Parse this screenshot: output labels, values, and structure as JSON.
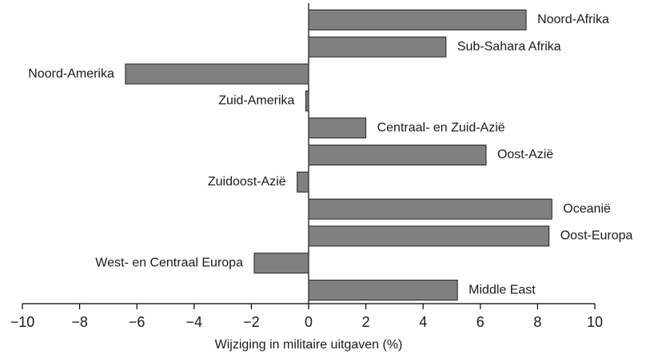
{
  "chart_data": {
    "type": "hbar",
    "orientation": "horizontal",
    "x_label": "Wijziging in militaire uitgaven (%)",
    "categories": [
      "Noord-Afrika",
      "Sub-Sahara Afrika",
      "Noord-Amerika",
      "Zuid-Amerika",
      "Centraal- en Zuid-Azië",
      "Oost-Azië",
      "Zuidoost-Azië",
      "Oceanië",
      "Oost-Europa",
      "West- en Centraal Europa",
      "Middle East"
    ],
    "values": [
      7.6,
      4.8,
      -6.4,
      -0.1,
      2.0,
      6.2,
      -0.4,
      8.5,
      8.4,
      -1.9,
      5.2
    ],
    "color": "#808080",
    "xlim": [
      -10,
      10
    ],
    "xticks": [
      {
        "value": -10,
        "label": "−10"
      },
      {
        "value": -8,
        "label": "−8"
      },
      {
        "value": -6,
        "label": "−6"
      },
      {
        "value": -4,
        "label": "−4"
      },
      {
        "value": -2,
        "label": "−2"
      },
      0,
      2,
      4,
      6,
      8,
      10
    ],
    "grid": false
  }
}
